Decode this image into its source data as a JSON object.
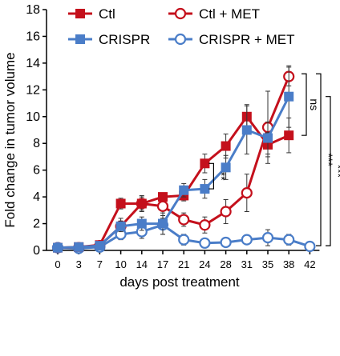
{
  "chart_data": {
    "type": "line",
    "xlabel": "days post treatment",
    "ylabel": "Fold change in tumor volume",
    "categories": [
      "0",
      "3",
      "7",
      "10",
      "14",
      "17",
      "21",
      "24",
      "28",
      "31",
      "35",
      "38",
      "42"
    ],
    "ylim": [
      0,
      18
    ],
    "yticks": [
      "0",
      "2",
      "4",
      "6",
      "8",
      "10",
      "12",
      "14",
      "16",
      "18"
    ],
    "grid": false,
    "legend_position": "top",
    "series": [
      {
        "name": "Ctl",
        "color": "#c4101c",
        "marker": "square-filled",
        "values": [
          0.2,
          0.25,
          0.4,
          3.5,
          3.5,
          4.0,
          4.1,
          6.5,
          7.8,
          10.0,
          7.9,
          8.6,
          null
        ],
        "errors": [
          0.05,
          0.1,
          0.1,
          0.4,
          0.6,
          0.3,
          0.4,
          0.7,
          0.9,
          0.9,
          0.9,
          1.3,
          null
        ]
      },
      {
        "name": "Ctl + MET",
        "color": "#c4101c",
        "marker": "circle-open",
        "values": [
          0.2,
          0.2,
          0.35,
          1.8,
          3.5,
          3.3,
          2.3,
          1.9,
          2.9,
          4.3,
          9.2,
          13.0,
          null
        ],
        "errors": [
          0.05,
          0.05,
          0.1,
          0.6,
          0.5,
          0.9,
          0.5,
          0.6,
          0.9,
          1.4,
          2.7,
          0.7,
          null
        ]
      },
      {
        "name": "CRISPR",
        "color": "#4a7dc8",
        "marker": "square-filled",
        "values": [
          0.2,
          0.25,
          0.35,
          1.8,
          2.0,
          2.0,
          4.5,
          4.6,
          6.2,
          9.0,
          8.4,
          11.5,
          null
        ],
        "errors": [
          0.05,
          0.1,
          0.1,
          0.4,
          0.5,
          0.8,
          0.5,
          0.7,
          0.9,
          1.8,
          1.2,
          2.3,
          null
        ]
      },
      {
        "name": "CRISPR + MET",
        "color": "#4a7dc8",
        "marker": "circle-open",
        "values": [
          0.2,
          0.15,
          0.25,
          1.2,
          1.4,
          1.9,
          0.8,
          0.55,
          0.6,
          0.8,
          0.95,
          0.8,
          0.3
        ],
        "errors": [
          0.05,
          0.05,
          0.1,
          0.4,
          0.5,
          0.7,
          0.4,
          0.2,
          0.2,
          0.3,
          0.6,
          0.4,
          0.1
        ]
      }
    ],
    "annotations": [
      {
        "label": "**",
        "between": [
          "Ctl",
          "CRISPR"
        ]
      },
      {
        "label": "ns",
        "between": [
          "Ctl",
          "CRISPR"
        ]
      },
      {
        "label": "***",
        "between": [
          "Ctl",
          "CRISPR + MET"
        ]
      },
      {
        "label": "***",
        "between": [
          "CRISPR",
          "CRISPR + MET"
        ]
      }
    ]
  }
}
